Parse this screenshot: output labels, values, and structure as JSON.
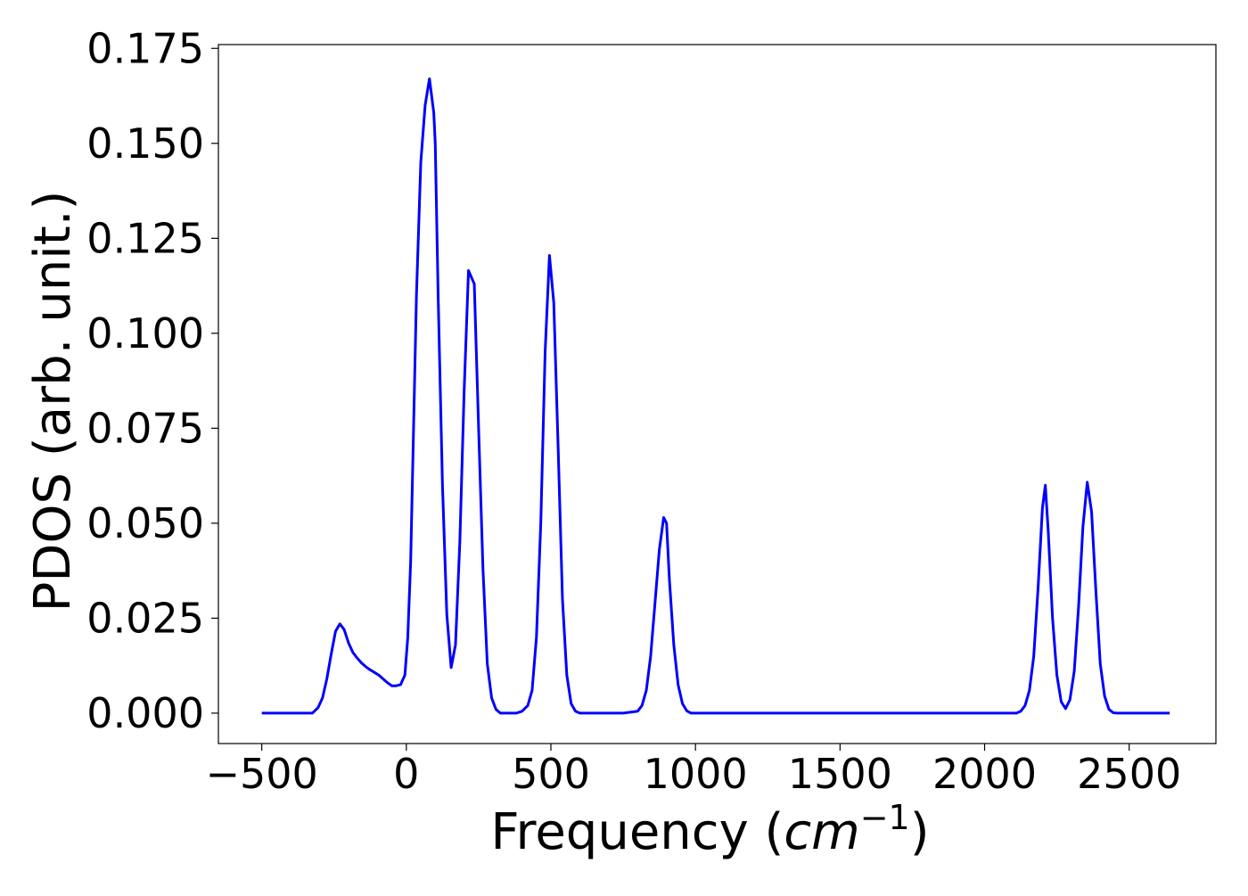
{
  "chart_data": {
    "type": "line",
    "title": "",
    "xlabel": "Frequency",
    "xlabel_unit_base": "cm",
    "xlabel_unit_exponent": "−1",
    "ylabel": "PDOS (arb. unit.)",
    "xlim": [
      -650,
      2800
    ],
    "ylim": [
      -0.008,
      0.176
    ],
    "grid": false,
    "legend": "none",
    "line_color": "#0000ff",
    "xticks": [
      -500,
      0,
      500,
      1000,
      1500,
      2000,
      2500
    ],
    "xtick_labels": [
      "−500",
      "0",
      "500",
      "1000",
      "1500",
      "2000",
      "2500"
    ],
    "yticks": [
      0.0,
      0.025,
      0.05,
      0.075,
      0.1,
      0.125,
      0.15,
      0.175
    ],
    "ytick_labels": [
      "0.000",
      "0.025",
      "0.050",
      "0.075",
      "0.100",
      "0.125",
      "0.150",
      "0.175"
    ],
    "series": [
      {
        "x": [
          -500,
          -325,
          -305,
          -290,
          -275,
          -260,
          -245,
          -230,
          -215,
          -200,
          -185,
          -170,
          -155,
          -140,
          -125,
          -110,
          -95,
          -80,
          -65,
          -50,
          -35,
          -20,
          -5,
          5,
          15,
          25,
          35,
          50,
          65,
          80,
          95,
          100,
          110,
          125,
          140,
          155,
          170,
          185,
          200,
          215,
          235,
          250,
          265,
          280,
          295,
          310,
          325,
          340,
          360,
          380,
          400,
          420,
          435,
          450,
          465,
          480,
          495,
          510,
          525,
          540,
          555,
          570,
          585,
          600,
          615,
          630,
          660,
          700,
          750,
          800,
          815,
          830,
          845,
          860,
          875,
          890,
          900,
          910,
          925,
          940,
          955,
          970,
          985,
          1000,
          1015,
          1050,
          1500,
          2000,
          2110,
          2125,
          2140,
          2155,
          2170,
          2185,
          2200,
          2210,
          2220,
          2235,
          2250,
          2265,
          2280,
          2295,
          2310,
          2325,
          2340,
          2355,
          2370,
          2385,
          2400,
          2415,
          2430,
          2445,
          2460,
          2480,
          2640
        ],
        "y": [
          0.0,
          0.0,
          0.0015,
          0.004,
          0.009,
          0.0155,
          0.0215,
          0.0235,
          0.022,
          0.0185,
          0.016,
          0.0145,
          0.0132,
          0.0122,
          0.0114,
          0.0107,
          0.01,
          0.009,
          0.008,
          0.0072,
          0.0072,
          0.0075,
          0.01,
          0.02,
          0.04,
          0.075,
          0.11,
          0.145,
          0.16,
          0.167,
          0.158,
          0.15,
          0.11,
          0.06,
          0.026,
          0.012,
          0.018,
          0.045,
          0.085,
          0.1165,
          0.113,
          0.075,
          0.038,
          0.013,
          0.004,
          0.001,
          0.0,
          0.0,
          0.0,
          0.0,
          0.0005,
          0.002,
          0.006,
          0.02,
          0.05,
          0.095,
          0.1205,
          0.108,
          0.07,
          0.03,
          0.01,
          0.0025,
          0.0005,
          0.0,
          0.0,
          0.0,
          0.0,
          0.0,
          0.0,
          0.0005,
          0.002,
          0.006,
          0.015,
          0.029,
          0.043,
          0.0515,
          0.05,
          0.035,
          0.018,
          0.0075,
          0.0025,
          0.0006,
          0.0,
          0.0,
          0.0,
          0.0,
          0.0,
          0.0,
          0.0,
          0.0005,
          0.002,
          0.006,
          0.015,
          0.033,
          0.054,
          0.06,
          0.048,
          0.025,
          0.01,
          0.003,
          0.0012,
          0.0035,
          0.011,
          0.028,
          0.049,
          0.0608,
          0.053,
          0.032,
          0.013,
          0.0045,
          0.001,
          0.0001,
          0.0,
          0.0,
          0.0
        ]
      }
    ]
  }
}
